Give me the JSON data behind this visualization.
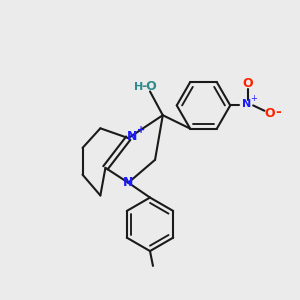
{
  "bg_color": "#ebebeb",
  "bond_color": "#1a1a1a",
  "N_color": "#1a1aff",
  "O_color": "#ff2200",
  "OH_color": "#2e8b8b",
  "lw": 1.5,
  "xlim": [
    0,
    10
  ],
  "ylim": [
    0,
    10
  ]
}
